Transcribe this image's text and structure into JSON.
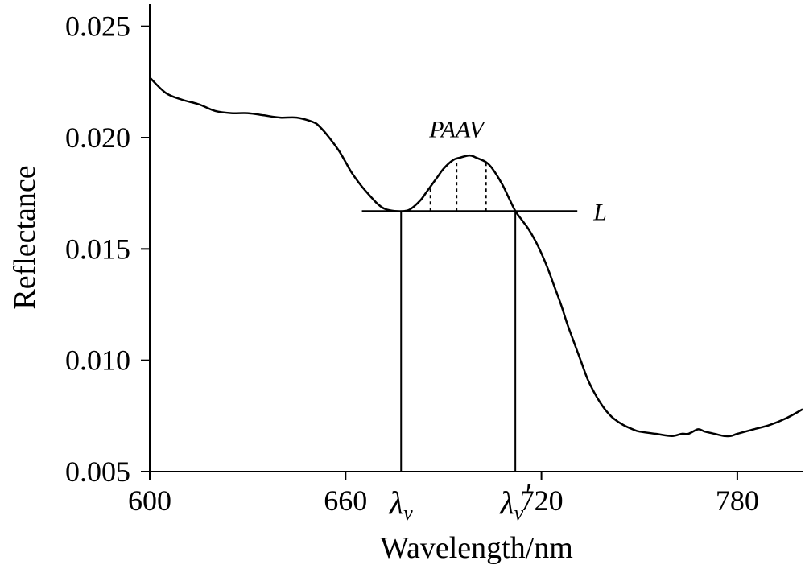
{
  "chart_data": {
    "type": "line",
    "title": "",
    "xlabel": "Wavelength/nm",
    "ylabel": "Reflectance",
    "xlim": [
      600,
      800
    ],
    "ylim": [
      0.005,
      0.026
    ],
    "x_ticks": [
      600,
      660,
      720,
      780
    ],
    "x_tick_labels": [
      "600",
      "660",
      "720",
      "780"
    ],
    "y_ticks": [
      0.005,
      0.01,
      0.015,
      0.02,
      0.025
    ],
    "y_tick_labels": [
      "0.005",
      "0.010",
      "0.015",
      "0.020",
      "0.025"
    ],
    "grid": false,
    "legend": "none",
    "series": [
      {
        "x": [
          600,
          605,
          610,
          615,
          620,
          625,
          630,
          635,
          640,
          645,
          650,
          652,
          655,
          658,
          660,
          662,
          665,
          668,
          670,
          672,
          675,
          678,
          680,
          683,
          685,
          688,
          690,
          693,
          695,
          698,
          700,
          703,
          705,
          708,
          710,
          712,
          714,
          716,
          718,
          720,
          722,
          724,
          726,
          728,
          730,
          732,
          734,
          736,
          738,
          740,
          742,
          745,
          748,
          750,
          755,
          760,
          763,
          765,
          768,
          770,
          773,
          776,
          778,
          780,
          785,
          790,
          795,
          800
        ],
        "y": [
          0.0227,
          0.022,
          0.0217,
          0.0215,
          0.0212,
          0.0211,
          0.0211,
          0.021,
          0.0209,
          0.0209,
          0.0207,
          0.0205,
          0.02,
          0.0194,
          0.0189,
          0.0184,
          0.0178,
          0.0173,
          0.017,
          0.0168,
          0.0167,
          0.0167,
          0.0168,
          0.0172,
          0.0176,
          0.0182,
          0.0186,
          0.019,
          0.0191,
          0.0192,
          0.0191,
          0.0189,
          0.0186,
          0.0179,
          0.0173,
          0.0167,
          0.0163,
          0.0159,
          0.0154,
          0.0148,
          0.0141,
          0.0133,
          0.0125,
          0.0116,
          0.0108,
          0.01,
          0.0092,
          0.0086,
          0.0081,
          0.0077,
          0.0074,
          0.0071,
          0.0069,
          0.0068,
          0.0067,
          0.0066,
          0.0067,
          0.0067,
          0.0069,
          0.0068,
          0.0067,
          0.0066,
          0.0066,
          0.0067,
          0.0069,
          0.0071,
          0.0074,
          0.0078
        ]
      }
    ],
    "annotations": {
      "baseline_L": {
        "x_start": 665,
        "x_end": 731,
        "y": 0.0167,
        "label": "L"
      },
      "lambda_v": {
        "x": 677,
        "label": "λ",
        "sub": "v",
        "prime": ""
      },
      "lambda_v_prime": {
        "x": 712,
        "label": "λ",
        "sub": "v",
        "prime": "′"
      },
      "paav": {
        "label": "PAAV",
        "dashed_x": [
          686,
          694,
          703
        ]
      }
    }
  }
}
